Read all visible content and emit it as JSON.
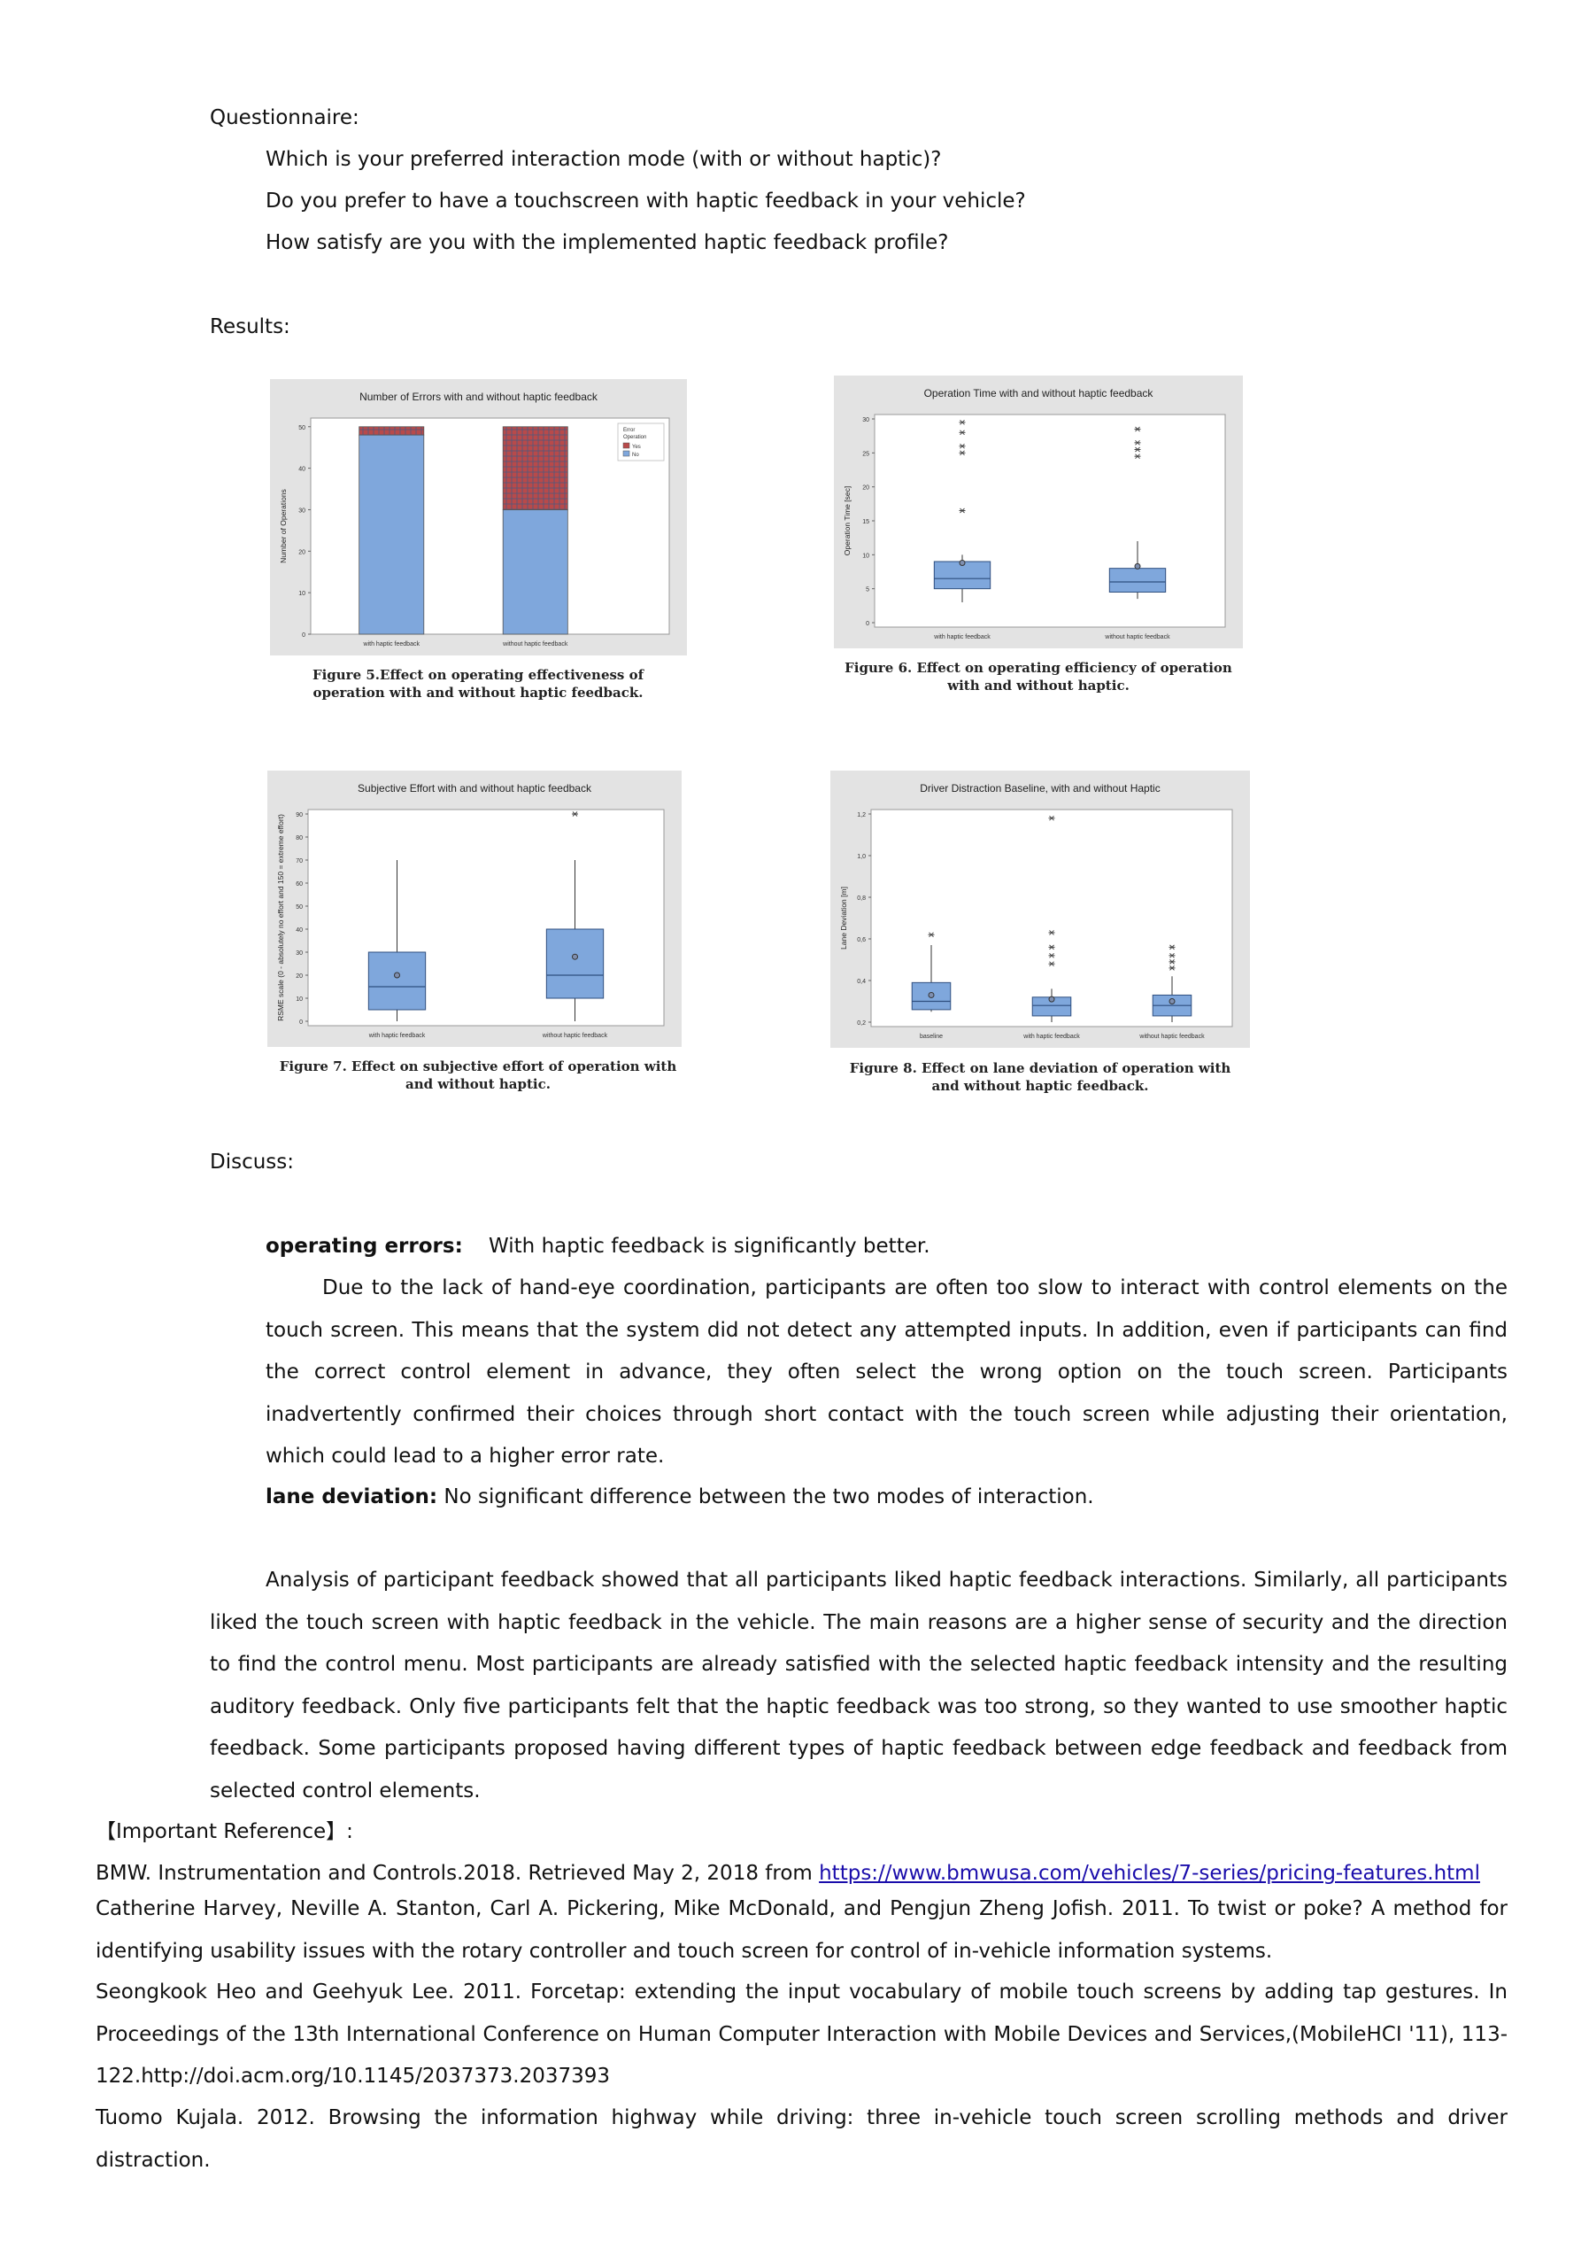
{
  "questionnaire": {
    "heading": "Questionnaire:",
    "questions": [
      "Which is your preferred interaction mode (with or without haptic)?",
      "Do you prefer to have a touchscreen with haptic feedback in your vehicle?",
      "How satisfy are you with the implemented haptic feedback profile?"
    ]
  },
  "results_heading": "Results:",
  "figures": [
    {
      "caption": "Figure 5.Effect on operating effectiveness of operation with and without haptic feedback.",
      "chart_data": {
        "type": "bar",
        "stacked": true,
        "title": "Number of Errors with and without haptic feedback",
        "ylabel": "Number of Operations",
        "xlabel": "",
        "categories": [
          "with haptic feedback",
          "without haptic feedback"
        ],
        "ylim": [
          0,
          50
        ],
        "yticks": [
          0,
          10,
          20,
          30,
          40,
          50
        ],
        "legend_title": "Error Operation",
        "legend_position": "top-right",
        "series": [
          {
            "name": "No",
            "color": "#7fa7dc",
            "values": [
              48,
              30
            ]
          },
          {
            "name": "Yes",
            "color": "#b84a4a",
            "values": [
              2,
              20
            ]
          }
        ]
      }
    },
    {
      "caption": "Figure 6. Effect on operating efficiency of operation with and without haptic.",
      "chart_data": {
        "type": "box",
        "title": "Operation Time with and without haptic feedback",
        "ylabel": "Operation Time [sec]",
        "xlabel": "",
        "categories": [
          "with haptic feedback",
          "without haptic feedback"
        ],
        "ylim": [
          0,
          30
        ],
        "yticks": [
          0,
          5,
          10,
          15,
          20,
          25,
          30
        ],
        "boxes": [
          {
            "whisker_low": 3,
            "q1": 5,
            "median": 6.5,
            "q3": 9,
            "whisker_high": 10,
            "mean": 8.8,
            "outliers": [
              16.5,
              25,
              26,
              28,
              29.5
            ]
          },
          {
            "whisker_low": 3.5,
            "q1": 4.5,
            "median": 6,
            "q3": 8,
            "whisker_high": 12,
            "mean": 8.3,
            "outliers": [
              24.5,
              25.5,
              26.5,
              28.5
            ]
          }
        ]
      }
    },
    {
      "caption": "Figure 7. Effect on subjective effort of operation with and without haptic.",
      "chart_data": {
        "type": "box",
        "title": "Subjective Effort with and without haptic feedback",
        "ylabel": "RSME scale (0 - absolutely no effort and 150 = extreme effort)",
        "xlabel": "",
        "categories": [
          "with haptic feedback",
          "without haptic feedback"
        ],
        "ylim": [
          0,
          90
        ],
        "yticks": [
          0,
          10,
          20,
          30,
          40,
          50,
          60,
          70,
          80,
          90
        ],
        "boxes": [
          {
            "whisker_low": 0,
            "q1": 5,
            "median": 15,
            "q3": 30,
            "whisker_high": 70,
            "mean": 20,
            "outliers": []
          },
          {
            "whisker_low": 0,
            "q1": 10,
            "median": 20,
            "q3": 40,
            "whisker_high": 70,
            "mean": 28,
            "outliers": [
              90
            ]
          }
        ]
      }
    },
    {
      "caption": "Figure 8. Effect on lane deviation of operation with and without haptic feedback.",
      "chart_data": {
        "type": "box",
        "title": "Driver Distraction Baseline, with and without Haptic",
        "ylabel": "Lane Deviation [m]",
        "xlabel": "",
        "categories": [
          "baseline",
          "with haptic feedback",
          "without haptic feedback"
        ],
        "ylim": [
          0.2,
          1.2
        ],
        "yticks": [
          "0,2",
          "0,4",
          "0,6",
          "0,8",
          "1,0",
          "1,2"
        ],
        "boxes": [
          {
            "whisker_low": 0.25,
            "q1": 0.26,
            "median": 0.3,
            "q3": 0.39,
            "whisker_high": 0.57,
            "mean": 0.33,
            "outliers": [
              0.62
            ]
          },
          {
            "whisker_low": 0.2,
            "q1": 0.23,
            "median": 0.28,
            "q3": 0.32,
            "whisker_high": 0.36,
            "mean": 0.31,
            "outliers": [
              0.48,
              0.52,
              0.56,
              0.63,
              1.18
            ]
          },
          {
            "whisker_low": 0.2,
            "q1": 0.23,
            "median": 0.28,
            "q3": 0.33,
            "whisker_high": 0.42,
            "mean": 0.3,
            "outliers": [
              0.46,
              0.49,
              0.52,
              0.56
            ]
          }
        ]
      }
    }
  ],
  "discuss": {
    "heading": "Discuss:",
    "errors_label": "operating errors:",
    "errors_text": "With haptic feedback is significantly better.",
    "errors_paragraph": "Due to the lack of hand-eye coordination, participants are often too slow to interact with control elements on the touch screen. This means that the system did not detect any attempted inputs. In addition, even if participants can find the correct control element in advance, they often select the wrong option on the touch screen. Participants inadvertently confirmed their choices through short contact with the touch screen while adjusting their orientation, which could lead to a higher error rate.",
    "lane_label": "lane deviation:",
    "lane_text": "No significant difference between the two modes of interaction.",
    "feedback_paragraph": "Analysis of participant feedback showed that all participants liked haptic feedback interactions. Similarly, all participants liked the touch screen with haptic feedback in the vehicle. The main reasons are a higher sense of security and the direction to find the control menu. Most participants are already satisfied with the selected haptic feedback intensity and the resulting auditory feedback. Only five participants felt that the haptic feedback was too strong, so they wanted to use smoother haptic feedback. Some participants proposed having different types of haptic feedback between edge feedback and feedback from selected control elements."
  },
  "references": {
    "heading": "【Important Reference】:",
    "ref1_text": "BMW. Instrumentation and Controls.2018. Retrieved May 2, 2018 from ",
    "ref1_link": "https://www.bmwusa.com/vehicles/7-series/pricing-features.html",
    "ref2": "Catherine Harvey, Neville A. Stanton, Carl A. Pickering, Mike McDonald, and Pengjun Zheng Jofish. 2011. To twist or poke? A method for identifying usability issues with the rotary controller and touch screen for control of in-vehicle information systems.",
    "ref3": "Seongkook Heo and Geehyuk Lee. 2011. Forcetap: extending the input vocabulary of mobile touch screens by adding tap gestures. In Proceedings of the 13th International Conference on Human Computer Interaction with Mobile Devices and Services,(MobileHCI '11), 113-122.http://doi.acm.org/10.1145/2037373.2037393",
    "ref4": "Tuomo Kujala. 2012. Browsing the information highway while driving: three in-vehicle touch screen scrolling methods and driver distraction."
  }
}
